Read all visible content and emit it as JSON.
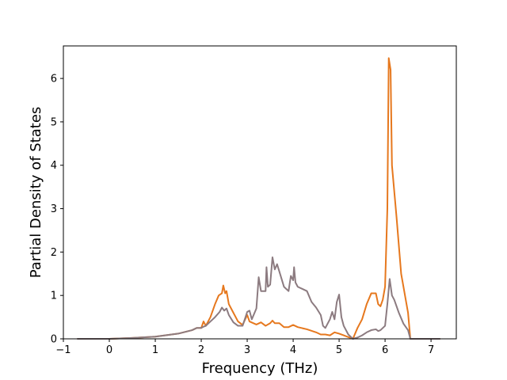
{
  "chart_data": {
    "type": "line",
    "title": "",
    "xlabel": "Frequency (THz)",
    "ylabel": "Partial Density of States",
    "xlim": [
      -1.0,
      7.55
    ],
    "ylim": [
      0,
      6.75
    ],
    "xticks": [
      -1,
      0,
      1,
      2,
      3,
      4,
      5,
      6,
      7
    ],
    "yticks": [
      0,
      1,
      2,
      3,
      4,
      5,
      6
    ],
    "grid": false,
    "legend": "none",
    "series": [
      {
        "color": "#e6781e",
        "points": [
          [
            -0.7,
            0.0
          ],
          [
            0.0,
            0.0
          ],
          [
            0.5,
            0.02
          ],
          [
            1.0,
            0.05
          ],
          [
            1.5,
            0.12
          ],
          [
            1.8,
            0.2
          ],
          [
            1.9,
            0.25
          ],
          [
            2.0,
            0.25
          ],
          [
            2.05,
            0.4
          ],
          [
            2.1,
            0.3
          ],
          [
            2.2,
            0.5
          ],
          [
            2.3,
            0.8
          ],
          [
            2.38,
            1.0
          ],
          [
            2.45,
            1.05
          ],
          [
            2.48,
            1.23
          ],
          [
            2.52,
            1.05
          ],
          [
            2.55,
            1.1
          ],
          [
            2.6,
            0.8
          ],
          [
            2.7,
            0.6
          ],
          [
            2.8,
            0.4
          ],
          [
            2.9,
            0.32
          ],
          [
            3.0,
            0.55
          ],
          [
            3.05,
            0.4
          ],
          [
            3.2,
            0.33
          ],
          [
            3.3,
            0.38
          ],
          [
            3.4,
            0.3
          ],
          [
            3.5,
            0.36
          ],
          [
            3.55,
            0.42
          ],
          [
            3.6,
            0.36
          ],
          [
            3.7,
            0.36
          ],
          [
            3.8,
            0.27
          ],
          [
            3.9,
            0.27
          ],
          [
            4.0,
            0.32
          ],
          [
            4.1,
            0.27
          ],
          [
            4.3,
            0.22
          ],
          [
            4.5,
            0.15
          ],
          [
            4.6,
            0.1
          ],
          [
            4.7,
            0.1
          ],
          [
            4.8,
            0.08
          ],
          [
            4.9,
            0.15
          ],
          [
            5.0,
            0.12
          ],
          [
            5.1,
            0.08
          ],
          [
            5.2,
            0.04
          ],
          [
            5.3,
            0.0
          ],
          [
            5.4,
            0.25
          ],
          [
            5.5,
            0.45
          ],
          [
            5.6,
            0.8
          ],
          [
            5.7,
            1.05
          ],
          [
            5.8,
            1.05
          ],
          [
            5.85,
            0.8
          ],
          [
            5.9,
            0.75
          ],
          [
            5.95,
            0.9
          ],
          [
            6.0,
            1.2
          ],
          [
            6.05,
            3.0
          ],
          [
            6.08,
            6.47
          ],
          [
            6.12,
            6.2
          ],
          [
            6.15,
            4.0
          ],
          [
            6.25,
            2.8
          ],
          [
            6.35,
            1.5
          ],
          [
            6.4,
            1.2
          ],
          [
            6.5,
            0.6
          ],
          [
            6.55,
            0.0
          ],
          [
            7.2,
            0.0
          ]
        ]
      },
      {
        "color": "#8c7b80",
        "points": [
          [
            -0.7,
            0.0
          ],
          [
            0.0,
            0.0
          ],
          [
            0.5,
            0.02
          ],
          [
            1.0,
            0.05
          ],
          [
            1.5,
            0.12
          ],
          [
            1.8,
            0.2
          ],
          [
            1.9,
            0.25
          ],
          [
            2.0,
            0.25
          ],
          [
            2.05,
            0.28
          ],
          [
            2.1,
            0.3
          ],
          [
            2.2,
            0.4
          ],
          [
            2.3,
            0.5
          ],
          [
            2.4,
            0.62
          ],
          [
            2.45,
            0.72
          ],
          [
            2.5,
            0.65
          ],
          [
            2.55,
            0.7
          ],
          [
            2.6,
            0.55
          ],
          [
            2.7,
            0.38
          ],
          [
            2.8,
            0.3
          ],
          [
            2.9,
            0.3
          ],
          [
            3.0,
            0.62
          ],
          [
            3.05,
            0.65
          ],
          [
            3.1,
            0.45
          ],
          [
            3.2,
            0.7
          ],
          [
            3.25,
            1.42
          ],
          [
            3.3,
            1.1
          ],
          [
            3.4,
            1.1
          ],
          [
            3.42,
            1.65
          ],
          [
            3.45,
            1.2
          ],
          [
            3.5,
            1.25
          ],
          [
            3.55,
            1.88
          ],
          [
            3.6,
            1.6
          ],
          [
            3.65,
            1.72
          ],
          [
            3.7,
            1.55
          ],
          [
            3.8,
            1.2
          ],
          [
            3.9,
            1.1
          ],
          [
            3.95,
            1.45
          ],
          [
            4.0,
            1.35
          ],
          [
            4.02,
            1.65
          ],
          [
            4.05,
            1.3
          ],
          [
            4.1,
            1.2
          ],
          [
            4.2,
            1.15
          ],
          [
            4.3,
            1.1
          ],
          [
            4.4,
            0.85
          ],
          [
            4.5,
            0.72
          ],
          [
            4.6,
            0.55
          ],
          [
            4.65,
            0.3
          ],
          [
            4.7,
            0.25
          ],
          [
            4.8,
            0.45
          ],
          [
            4.85,
            0.62
          ],
          [
            4.9,
            0.45
          ],
          [
            4.95,
            0.85
          ],
          [
            5.0,
            1.02
          ],
          [
            5.05,
            0.5
          ],
          [
            5.1,
            0.3
          ],
          [
            5.2,
            0.1
          ],
          [
            5.3,
            0.0
          ],
          [
            5.4,
            0.03
          ],
          [
            5.5,
            0.08
          ],
          [
            5.6,
            0.15
          ],
          [
            5.7,
            0.2
          ],
          [
            5.8,
            0.22
          ],
          [
            5.85,
            0.18
          ],
          [
            5.9,
            0.2
          ],
          [
            6.0,
            0.3
          ],
          [
            6.05,
            0.8
          ],
          [
            6.1,
            1.38
          ],
          [
            6.15,
            1.0
          ],
          [
            6.2,
            0.9
          ],
          [
            6.3,
            0.6
          ],
          [
            6.4,
            0.35
          ],
          [
            6.5,
            0.2
          ],
          [
            6.55,
            0.0
          ],
          [
            7.2,
            0.0
          ]
        ]
      }
    ]
  }
}
